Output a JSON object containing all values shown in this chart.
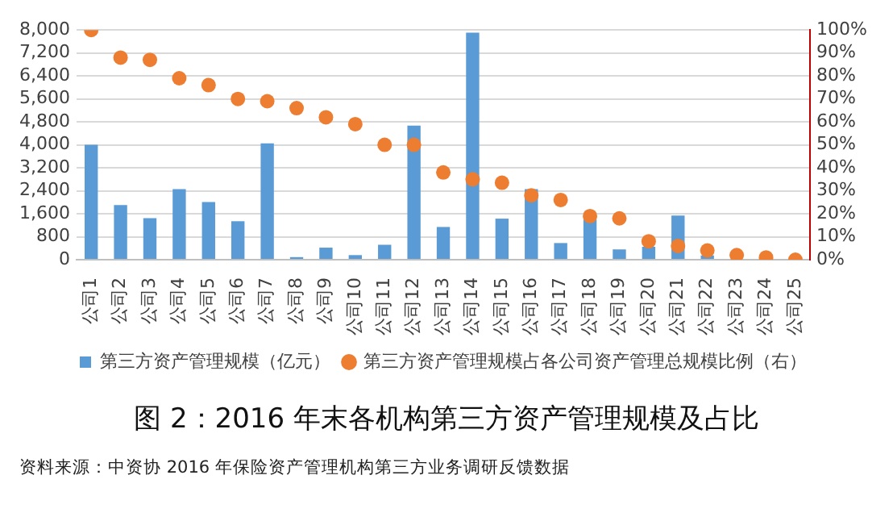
{
  "chart_data": {
    "type": "bar",
    "title": "图 2：2016 年末各机构第三方资产管理规模及占比",
    "annotations": [
      "资料来源：中资协 2016 年保险资产管理机构第三方业务调研反馈数据"
    ],
    "categories": [
      "公司1",
      "公司2",
      "公司3",
      "公司4",
      "公司5",
      "公司6",
      "公司7",
      "公司8",
      "公司9",
      "公司10",
      "公司11",
      "公司12",
      "公司13",
      "公司14",
      "公司15",
      "公司16",
      "公司17",
      "公司18",
      "公司19",
      "公司20",
      "公司21",
      "公司22",
      "公司23",
      "公司24",
      "公司25"
    ],
    "series": [
      {
        "name": "第三方资产管理规模（亿元）",
        "color": "#5b9bd5",
        "values": [
          4000,
          1900,
          1450,
          2460,
          2010,
          1340,
          4050,
          90,
          420,
          160,
          520,
          4670,
          1140,
          7910,
          1430,
          2460,
          580,
          1400,
          360,
          450,
          1540,
          150,
          30,
          10,
          0
        ]
      },
      {
        "name": "第三方资产管理规模占各公司资产管理总规模比例（右）",
        "type": "scatter",
        "axis": "y2",
        "color": "#ed7d31",
        "marker": "circle",
        "values": [
          100,
          88,
          87,
          79,
          76,
          70,
          69,
          66,
          62,
          59,
          50,
          50,
          38,
          35,
          33.5,
          28,
          26,
          19,
          18,
          8,
          6,
          4,
          2,
          1,
          0
        ]
      }
    ],
    "ylim": [
      0,
      8000
    ],
    "yticks": [
      0,
      {
        "value": 800,
        "label": "800"
      },
      {
        "value": 1600,
        "label": "1,600"
      },
      {
        "value": 2400,
        "label": "2,400"
      },
      {
        "value": 3200,
        "label": "3,200"
      },
      {
        "value": 4000,
        "label": "4,000"
      },
      {
        "value": 4800,
        "label": "4,800"
      },
      {
        "value": 5600,
        "label": "5,600"
      },
      {
        "value": 6400,
        "label": "6,400"
      },
      {
        "value": 7200,
        "label": "7,200"
      },
      {
        "value": 8000,
        "label": "8,000"
      }
    ],
    "y2lim": [
      0,
      100
    ],
    "y2ticks": [
      {
        "value": 0,
        "label": "0%"
      },
      {
        "value": 10,
        "label": "10%"
      },
      {
        "value": 20,
        "label": "20%"
      },
      {
        "value": 30,
        "label": "30%"
      },
      {
        "value": 40,
        "label": "40%"
      },
      {
        "value": 50,
        "label": "50%"
      },
      {
        "value": 60,
        "label": "60%"
      },
      {
        "value": 70,
        "label": "70%"
      },
      {
        "value": 80,
        "label": "80%"
      },
      {
        "value": 90,
        "label": "90%"
      },
      {
        "value": 100,
        "label": "100%"
      }
    ],
    "grid": "y",
    "legend": "bottom"
  }
}
